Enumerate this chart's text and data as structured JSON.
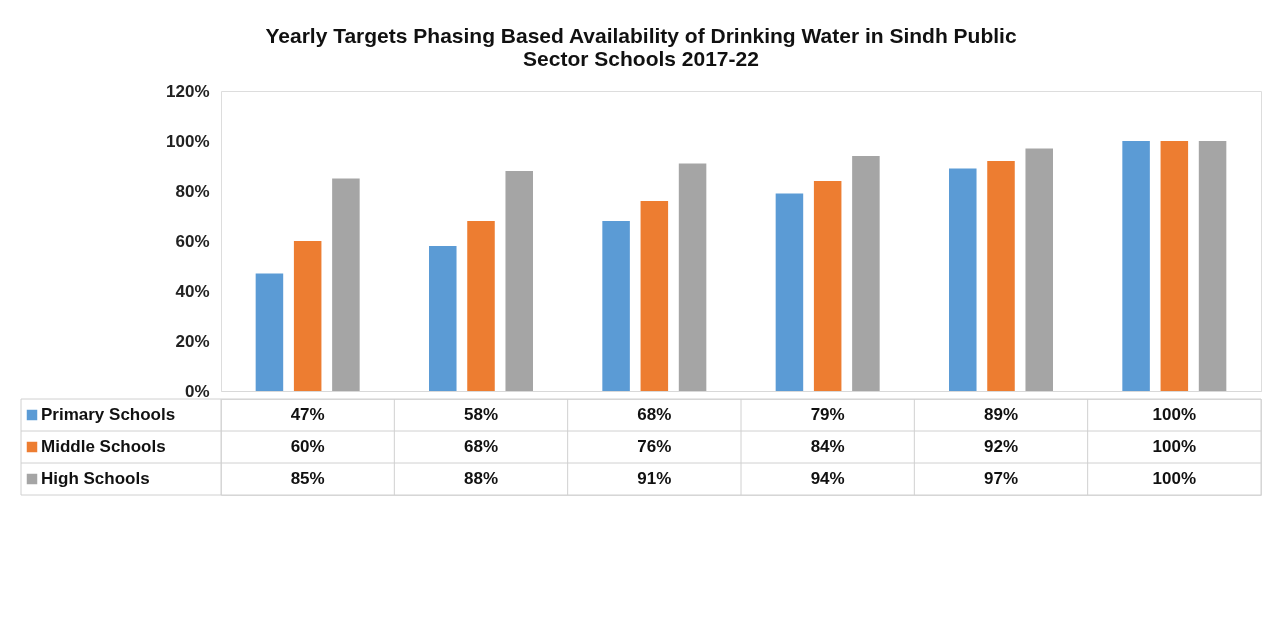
{
  "chart_data": {
    "type": "bar",
    "title": "Yearly Targets Phasing Based Availability of Drinking Water in Sindh Public Sector Schools 2017-22",
    "categories": [
      null,
      null,
      null,
      null,
      null,
      null
    ],
    "series": [
      {
        "name": "Primary Schools",
        "color": "#5b9bd5",
        "values": [
          47,
          58,
          68,
          79,
          89,
          100
        ],
        "value_labels": [
          "47%",
          "58%",
          "68%",
          "79%",
          "89%",
          "100%"
        ]
      },
      {
        "name": "Middle Schools",
        "color": "#ed7d31",
        "values": [
          60,
          68,
          76,
          84,
          92,
          100
        ],
        "value_labels": [
          "60%",
          "68%",
          "76%",
          "84%",
          "92%",
          "100%"
        ]
      },
      {
        "name": "High Schools",
        "color": "#a5a5a5",
        "values": [
          85,
          88,
          91,
          94,
          97,
          100
        ],
        "value_labels": [
          "85%",
          "88%",
          "91%",
          "94%",
          "97%",
          "100%"
        ]
      }
    ],
    "ylim": [
      0,
      120
    ],
    "yticks": [
      {
        "value": 0,
        "label": "0%"
      },
      {
        "value": 20,
        "label": "20%"
      },
      {
        "value": 40,
        "label": "40%"
      },
      {
        "value": 60,
        "label": "60%"
      },
      {
        "value": 80,
        "label": "80%"
      },
      {
        "value": 100,
        "label": "100%"
      },
      {
        "value": 120,
        "label": "120%"
      }
    ],
    "grid": false,
    "legend": "bottom"
  }
}
